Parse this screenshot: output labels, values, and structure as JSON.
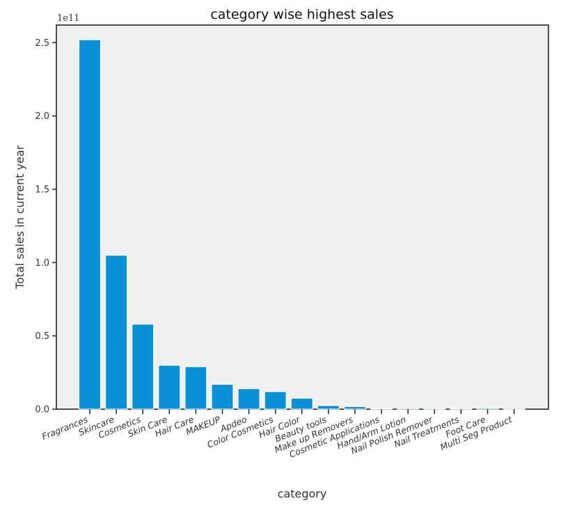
{
  "chart_data": {
    "type": "bar",
    "title": "category wise highest sales",
    "xlabel": "category",
    "ylabel": "Total sales in current year",
    "y_multiplier_label": "1e11",
    "ylim": [
      0,
      2.62
    ],
    "yticks": [
      0.0,
      0.5,
      1.0,
      1.5,
      2.0,
      2.5
    ],
    "ytick_labels": [
      "0.0",
      "0.5",
      "1.0",
      "1.5",
      "2.0",
      "2.5"
    ],
    "grid": false,
    "bar_color": "#0890d8",
    "categories": [
      "Fragrances",
      "Skincare",
      "Cosmetics",
      "Skin Care",
      "Hair Care",
      "MAKEUP",
      "Apdeo",
      "Color Cosmetics",
      "Hair Color",
      "Beauty tools",
      "Make up Removers",
      "Cosmetic Applications",
      "Hand/Arm Lotion",
      "Nail Polish Remover",
      "Nail Treatments",
      "Foot Care",
      "Multi Seg Product"
    ],
    "values": [
      2.52,
      1.05,
      0.58,
      0.3,
      0.29,
      0.17,
      0.14,
      0.12,
      0.075,
      0.025,
      0.018,
      0.004,
      0.007,
      0.002,
      0.003,
      0.008,
      0.001
    ]
  }
}
